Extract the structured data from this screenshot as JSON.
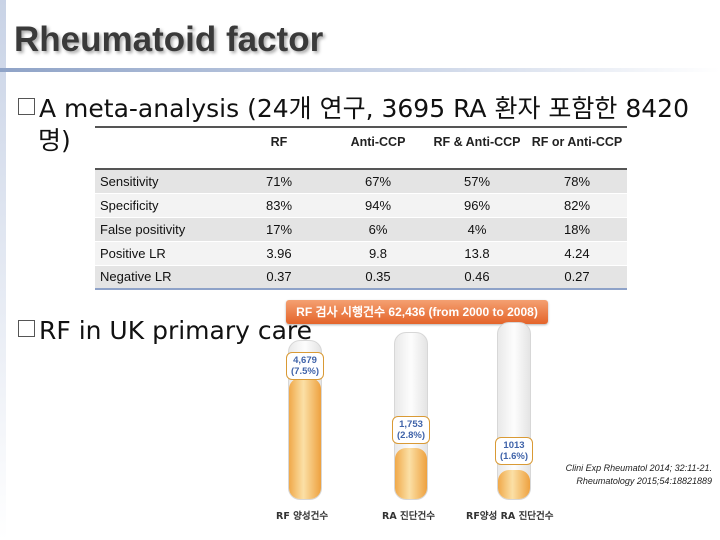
{
  "title": "Rheumatoid factor",
  "bullets": {
    "first_line": "A meta-analysis (24개 연구, 3695 RA 환자 포함한 8420",
    "first_cont": "명)",
    "second": "RF in UK primary care"
  },
  "table": {
    "headers": [
      "",
      "RF",
      "Anti-CCP",
      "RF & Anti-CCP",
      "RF or Anti-CCP"
    ],
    "rows": [
      {
        "label": "Sensitivity",
        "values": [
          "71%",
          "67%",
          "57%",
          "78%"
        ]
      },
      {
        "label": "Specificity",
        "values": [
          "83%",
          "94%",
          "96%",
          "82%"
        ]
      },
      {
        "label": "False positivity",
        "values": [
          "17%",
          "6%",
          "4%",
          "18%"
        ]
      },
      {
        "label": "Positive LR",
        "values": [
          "3.96",
          "9.8",
          "13.8",
          "4.24"
        ]
      },
      {
        "label": "Negative LR",
        "values": [
          "0.37",
          "0.35",
          "0.46",
          "0.27"
        ]
      }
    ]
  },
  "figure": {
    "banner": "RF 검사 시행건수 62,436 (from 2000 to 2008)",
    "tubes": [
      {
        "value": "4,679",
        "pct": "(7.5%)",
        "label": "RF 양성건수",
        "fill_fraction": 0.075
      },
      {
        "value": "1,753",
        "pct": "(2.8%)",
        "label": "RA 진단건수",
        "fill_fraction": 0.028
      },
      {
        "value": "1013",
        "pct": "(1.6%)",
        "label": "RF양성 RA 진단건수",
        "fill_fraction": 0.016
      }
    ]
  },
  "references": [
    "Clini Exp Rheumatol 2014; 32:11-21.",
    "Rheumatology 2015;54:18821889"
  ],
  "colors": {
    "banner": "#e4642a",
    "tube_fill": "#f0a94a",
    "bubble_text": "#3f63a9",
    "table_rule": "#8ea2c8"
  }
}
